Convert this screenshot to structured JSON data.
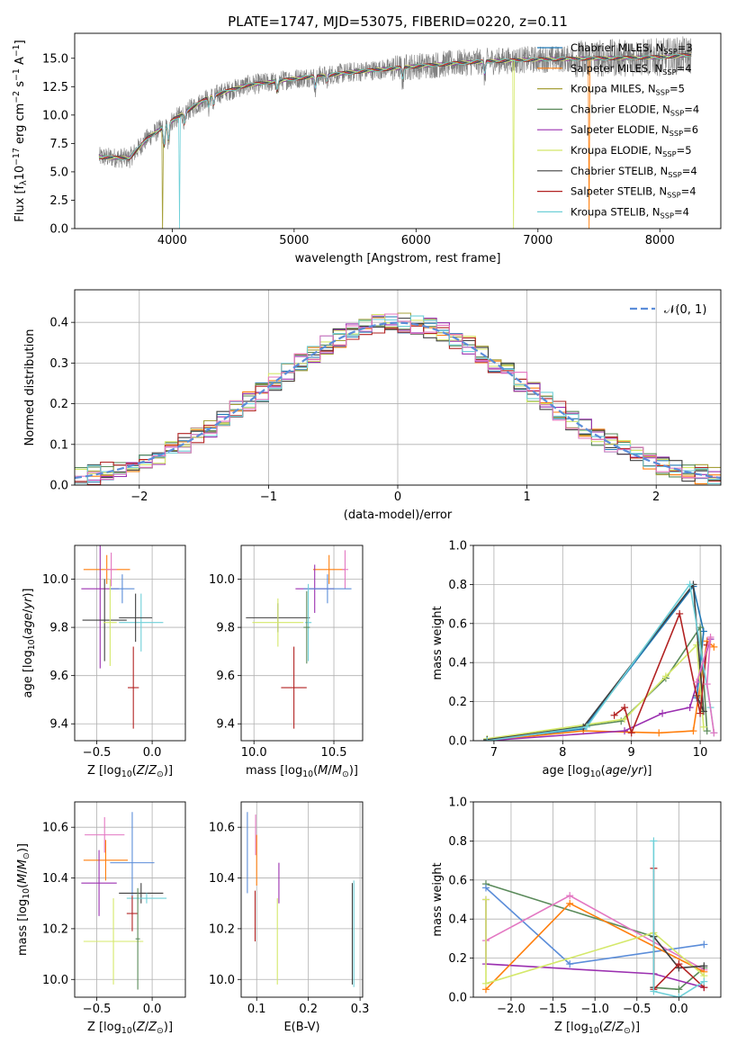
{
  "figure_title": "PLATE=1747, MJD=53075, FIBERID=0220, z=0.11",
  "chart_data": [
    {
      "id": "spectrum",
      "type": "line",
      "title": "PLATE=1747, MJD=53075, FIBERID=0220, z=0.11",
      "xlabel": "wavelength [Angstrom, rest frame]",
      "ylabel": "Flux [f$_\\lambda$10$^{-17}$ erg cm$^{-2}$ s$^{-1}$ A$^{-1}$]",
      "xlim": [
        3200,
        8500
      ],
      "ylim": [
        0,
        17.2
      ],
      "xticks": [
        4000,
        5000,
        6000,
        7000,
        8000
      ],
      "yticks": [
        0.0,
        2.5,
        5.0,
        7.5,
        10.0,
        12.5,
        15.0
      ],
      "ytick_labels": [
        "0.0",
        "2.5",
        "5.0",
        "7.5",
        "10.0",
        "12.5",
        "15.0"
      ],
      "continuum": {
        "x": [
          3400,
          3650,
          3800,
          4000,
          4300,
          4600,
          5000,
          5500,
          6000,
          6500,
          7000,
          7500,
          8000,
          8250
        ],
        "y": [
          6.3,
          6.2,
          8.0,
          9.5,
          11.6,
          12.6,
          13.2,
          13.8,
          14.3,
          14.7,
          14.9,
          15.0,
          15.1,
          15.3
        ]
      },
      "observed": {
        "name": "data",
        "color": "#7f7f7f"
      },
      "legend_position": "top-right",
      "series": [
        {
          "label": "Chabrier MILES, N$_{SSP}$=3",
          "color": "#1f77b4",
          "dip": null
        },
        {
          "label": "Salpeter MILES, N$_{SSP}$=4",
          "color": "#ff7f0e",
          "dip": 7420
        },
        {
          "label": "Kroupa MILES, N$_{SSP}$=5",
          "color": "#a6a03a",
          "dip": 3920
        },
        {
          "label": "Chabrier ELODIE, N$_{SSP}$=4",
          "color": "#5a8a5a",
          "dip": null
        },
        {
          "label": "Salpeter ELODIE, N$_{SSP}$=6",
          "color": "#9b30b0",
          "dip": null
        },
        {
          "label": "Kroupa ELODIE, N$_{SSP}$=5",
          "color": "#d4e86a",
          "dip": 6800
        },
        {
          "label": "Chabrier STELIB, N$_{SSP}$=4",
          "color": "#404040",
          "dip": null
        },
        {
          "label": "Salpeter STELIB, N$_{SSP}$=4",
          "color": "#b22222",
          "dip": null
        },
        {
          "label": "Kroupa STELIB, N$_{SSP}$=4",
          "color": "#6fd0d8",
          "dip": 4060
        }
      ]
    },
    {
      "id": "residuals",
      "type": "line",
      "xlabel": "(data-model)/error",
      "ylabel": "Normed distribution",
      "xlim": [
        -2.5,
        2.5
      ],
      "ylim": [
        0,
        0.48
      ],
      "xticks": [
        -2,
        -1,
        0,
        1,
        2
      ],
      "xtick_labels": [
        "−2",
        "−1",
        "0",
        "1",
        "2"
      ],
      "yticks": [
        0.0,
        0.1,
        0.2,
        0.3,
        0.4
      ],
      "ytick_labels": [
        "0.0",
        "0.1",
        "0.2",
        "0.3",
        "0.4"
      ],
      "bin_width": 0.1,
      "reference": {
        "label": "𝒩(0, 1)",
        "color": "#5b8dd9",
        "mean": 0,
        "sigma": 1
      },
      "histogram_colors": [
        "#1f77b4",
        "#ff7f0e",
        "#a6a03a",
        "#5a8a5a",
        "#9b30b0",
        "#d4e86a",
        "#404040",
        "#b22222",
        "#6fd0d8",
        "#e377c2"
      ],
      "grid": true
    },
    {
      "id": "age_vs_Z",
      "type": "scatter",
      "xlabel": "Z [log$_{10}$($Z/Z_\\odot$)]",
      "ylabel": "age  [log$_{10}$($age/yr$)]",
      "xlim": [
        -0.7,
        0.3
      ],
      "ylim": [
        9.33,
        10.14
      ],
      "xticks": [
        -0.5,
        0.0
      ],
      "xtick_labels": [
        "−0.5",
        "0.0"
      ],
      "yticks": [
        9.4,
        9.6,
        9.8,
        10.0
      ],
      "ytick_labels": [
        "9.4",
        "9.6",
        "9.8",
        "10.0"
      ],
      "grid": true,
      "points": [
        {
          "x": -0.41,
          "y": 10.04,
          "xerr": 0.21,
          "yerr": 0.06,
          "color": "#ff7f0e"
        },
        {
          "x": -0.37,
          "y": 10.04,
          "xerr": 0.05,
          "yerr": 0.07,
          "color": "#e377c2"
        },
        {
          "x": -0.47,
          "y": 9.96,
          "xerr": 0.17,
          "yerr": 0.33,
          "color": "#9b30b0"
        },
        {
          "x": -0.27,
          "y": 9.96,
          "xerr": 0.11,
          "yerr": 0.06,
          "color": "#5b8dd9"
        },
        {
          "x": -0.43,
          "y": 9.83,
          "xerr": 0.2,
          "yerr": 0.17,
          "color": "#404040"
        },
        {
          "x": -0.38,
          "y": 9.82,
          "xerr": 0.06,
          "yerr": 0.18,
          "color": "#d4e86a"
        },
        {
          "x": -0.1,
          "y": 9.82,
          "xerr": 0.2,
          "yerr": 0.12,
          "color": "#6fd0d8"
        },
        {
          "x": -0.15,
          "y": 9.84,
          "xerr": 0.15,
          "yerr": 0.1,
          "color": "#404040"
        },
        {
          "x": -0.17,
          "y": 9.55,
          "xerr": 0.05,
          "yerr": 0.17,
          "color": "#b22222"
        }
      ]
    },
    {
      "id": "age_vs_mass",
      "type": "scatter",
      "xlabel": "mass [log$_{10}$($M/M_\\odot$)]",
      "ylabel": "",
      "xlim": [
        9.92,
        10.68
      ],
      "ylim": [
        9.33,
        10.14
      ],
      "xticks": [
        10.0,
        10.5
      ],
      "xtick_labels": [
        "10.0",
        "10.5"
      ],
      "yticks": [
        9.4,
        9.6,
        9.8,
        10.0
      ],
      "ytick_labels": [
        "9.4",
        "9.6",
        "9.8",
        "10.0"
      ],
      "grid": true,
      "points": [
        {
          "x": 10.47,
          "y": 10.04,
          "xerr": 0.1,
          "yerr": 0.06,
          "color": "#ff7f0e"
        },
        {
          "x": 10.57,
          "y": 10.04,
          "xerr": 0.02,
          "yerr": 0.08,
          "color": "#e377c2"
        },
        {
          "x": 10.38,
          "y": 9.96,
          "xerr": 0.12,
          "yerr": 0.1,
          "color": "#9b30b0"
        },
        {
          "x": 10.46,
          "y": 9.96,
          "xerr": 0.15,
          "yerr": 0.06,
          "color": "#5b8dd9"
        },
        {
          "x": 10.15,
          "y": 9.84,
          "xerr": 0.2,
          "yerr": 0.06,
          "color": "#404040"
        },
        {
          "x": 10.15,
          "y": 9.82,
          "xerr": 0.16,
          "yerr": 0.1,
          "color": "#d4e86a"
        },
        {
          "x": 10.34,
          "y": 9.82,
          "xerr": 0.02,
          "yerr": 0.16,
          "color": "#6fd0d8"
        },
        {
          "x": 10.33,
          "y": 9.8,
          "xerr": 0.02,
          "yerr": 0.15,
          "color": "#5a8a5a"
        },
        {
          "x": 10.25,
          "y": 9.55,
          "xerr": 0.08,
          "yerr": 0.17,
          "color": "#b22222"
        }
      ]
    },
    {
      "id": "weight_vs_age",
      "type": "line",
      "xlabel": "age  [log$_{10}$($age/yr$)]",
      "ylabel": "mass weight",
      "xlim": [
        6.7,
        10.3
      ],
      "ylim": [
        0,
        1.0
      ],
      "xticks": [
        7,
        8,
        9,
        10
      ],
      "yticks": [
        0.0,
        0.2,
        0.4,
        0.6,
        0.8,
        1.0
      ],
      "ytick_labels": [
        "0.0",
        "0.2",
        "0.4",
        "0.6",
        "0.8",
        "1.0"
      ],
      "grid": true,
      "series": [
        {
          "color": "#1f77b4",
          "x": [
            6.9,
            8.3,
            9.9,
            10.05,
            9.95
          ],
          "y": [
            0.005,
            0.06,
            0.79,
            0.56,
            0.22
          ]
        },
        {
          "color": "#ff7f0e",
          "x": [
            6.9,
            8.3,
            9.4,
            9.9,
            10.1,
            10.2
          ],
          "y": [
            0.0,
            0.05,
            0.04,
            0.05,
            0.51,
            0.48
          ]
        },
        {
          "color": "#5a8a5a",
          "x": [
            6.9,
            8.85,
            9.5,
            10.0,
            10.1
          ],
          "y": [
            0.005,
            0.1,
            0.32,
            0.58,
            0.05
          ]
        },
        {
          "color": "#9b30b0",
          "x": [
            6.9,
            8.9,
            9.45,
            9.85,
            10.15
          ],
          "y": [
            0.0,
            0.05,
            0.14,
            0.17,
            0.52
          ]
        },
        {
          "color": "#d4e86a",
          "x": [
            6.9,
            8.9,
            9.5,
            9.95,
            10.05
          ],
          "y": [
            0.01,
            0.11,
            0.33,
            0.49,
            0.07
          ]
        },
        {
          "color": "#404040",
          "x": [
            6.9,
            8.3,
            9.9,
            10.05,
            9.95
          ],
          "y": [
            0.005,
            0.07,
            0.8,
            0.15,
            0.23
          ]
        },
        {
          "color": "#b22222",
          "x": [
            8.75,
            8.9,
            9.0,
            9.7,
            10.0,
            10.1
          ],
          "y": [
            0.13,
            0.17,
            0.04,
            0.65,
            0.14,
            0.49
          ]
        },
        {
          "color": "#6fd0d8",
          "x": [
            6.9,
            8.35,
            9.85,
            10.15,
            10.2
          ],
          "y": [
            0.0,
            0.07,
            0.8,
            0.17,
            0.04
          ]
        },
        {
          "color": "#e377c2",
          "x": [
            9.95,
            10.15,
            10.1,
            10.2
          ],
          "y": [
            0.3,
            0.53,
            0.29,
            0.04
          ]
        }
      ]
    },
    {
      "id": "mass_vs_Z",
      "type": "scatter",
      "xlabel": "Z [log$_{10}$($Z/Z_\\odot$)]",
      "ylabel": "mass [log$_{10}$($M/M_\\odot$)]",
      "xlim": [
        -0.7,
        0.3
      ],
      "ylim": [
        9.93,
        10.7
      ],
      "xticks": [
        -0.5,
        0.0
      ],
      "xtick_labels": [
        "−0.5",
        "0.0"
      ],
      "yticks": [
        10.0,
        10.2,
        10.4,
        10.6
      ],
      "ytick_labels": [
        "10.0",
        "10.2",
        "10.4",
        "10.6"
      ],
      "grid": true,
      "points": [
        {
          "x": -0.43,
          "y": 10.57,
          "xerr": 0.18,
          "yerr": 0.07,
          "color": "#e377c2"
        },
        {
          "x": -0.42,
          "y": 10.47,
          "xerr": 0.2,
          "yerr": 0.08,
          "color": "#ff7f0e"
        },
        {
          "x": -0.18,
          "y": 10.46,
          "xerr": 0.2,
          "yerr": 0.2,
          "color": "#5b8dd9"
        },
        {
          "x": -0.48,
          "y": 10.38,
          "xerr": 0.16,
          "yerr": 0.13,
          "color": "#9b30b0"
        },
        {
          "x": -0.1,
          "y": 10.34,
          "xerr": 0.2,
          "yerr": 0.04,
          "color": "#404040"
        },
        {
          "x": -0.05,
          "y": 10.32,
          "xerr": 0.18,
          "yerr": 0.02,
          "color": "#6fd0d8"
        },
        {
          "x": -0.18,
          "y": 10.26,
          "xerr": 0.05,
          "yerr": 0.07,
          "color": "#b22222"
        },
        {
          "x": -0.35,
          "y": 10.15,
          "xerr": 0.27,
          "yerr": 0.17,
          "color": "#d4e86a"
        },
        {
          "x": -0.13,
          "y": 10.16,
          "xerr": 0.02,
          "yerr": 0.2,
          "color": "#5a8a5a"
        }
      ]
    },
    {
      "id": "mass_vs_ebv",
      "type": "scatter",
      "xlabel": "E(B-V)",
      "ylabel": "",
      "xlim": [
        0.07,
        0.305
      ],
      "ylim": [
        9.93,
        10.7
      ],
      "xticks": [
        0.1,
        0.2,
        0.3
      ],
      "xtick_labels": [
        "0.1",
        "0.2",
        "0.3"
      ],
      "yticks": [
        10.0,
        10.2,
        10.4,
        10.6
      ],
      "ytick_labels": [
        "10.0",
        "10.2",
        "10.4",
        "10.6"
      ],
      "grid": true,
      "points": [
        {
          "x": 0.082,
          "y": 10.5,
          "yerr": 0.16,
          "color": "#5b8dd9"
        },
        {
          "x": 0.098,
          "y": 10.57,
          "yerr": 0.08,
          "color": "#e377c2"
        },
        {
          "x": 0.1,
          "y": 10.47,
          "yerr": 0.1,
          "color": "#ff7f0e"
        },
        {
          "x": 0.097,
          "y": 10.25,
          "yerr": 0.1,
          "color": "#b22222"
        },
        {
          "x": 0.143,
          "y": 10.38,
          "yerr": 0.08,
          "color": "#9b30b0"
        },
        {
          "x": 0.14,
          "y": 10.15,
          "yerr": 0.17,
          "color": "#d4e86a"
        },
        {
          "x": 0.285,
          "y": 10.18,
          "yerr": 0.2,
          "color": "#404040"
        },
        {
          "x": 0.288,
          "y": 10.18,
          "yerr": 0.21,
          "color": "#6fd0d8"
        }
      ]
    },
    {
      "id": "weight_vs_Z",
      "type": "line",
      "xlabel": "Z [log$_{10}$($Z/Z_\\odot$)]",
      "ylabel": "mass weight",
      "xlim": [
        -2.45,
        0.5
      ],
      "ylim": [
        0,
        1.0
      ],
      "xticks": [
        -2.0,
        -1.5,
        -1.0,
        -0.5,
        0.0
      ],
      "xtick_labels": [
        "−2.0",
        "−1.5",
        "−1.0",
        "−0.5",
        "0.0"
      ],
      "yticks": [
        0.0,
        0.2,
        0.4,
        0.6,
        0.8,
        1.0
      ],
      "ytick_labels": [
        "0.0",
        "0.2",
        "0.4",
        "0.6",
        "0.8",
        "1.0"
      ],
      "grid": true,
      "series": [
        {
          "color": "#5a8a5a",
          "x": [
            -2.3,
            -0.3,
            -0.3,
            0.0,
            0.3
          ],
          "y": [
            0.58,
            0.31,
            0.05,
            0.04,
            0.15
          ]
        },
        {
          "color": "#5b8dd9",
          "x": [
            -2.3,
            -1.3,
            0.3
          ],
          "y": [
            0.56,
            0.17,
            0.27
          ]
        },
        {
          "color": "#9b30b0",
          "x": [
            -2.3,
            -2.3,
            -0.3,
            0.3
          ],
          "y": [
            0.5,
            0.17,
            0.12,
            0.05
          ]
        },
        {
          "color": "#e377c2",
          "x": [
            -2.3,
            -1.3,
            0.3
          ],
          "y": [
            0.29,
            0.52,
            0.14
          ]
        },
        {
          "color": "#ff7f0e",
          "x": [
            -2.3,
            -1.3,
            0.3
          ],
          "y": [
            0.04,
            0.48,
            0.13
          ]
        },
        {
          "color": "#d4e86a",
          "x": [
            -2.3,
            -2.3,
            -0.3,
            0.3
          ],
          "y": [
            0.5,
            0.07,
            0.33,
            0.11
          ]
        },
        {
          "color": "#404040",
          "x": [
            -0.3,
            -0.3,
            0.0,
            0.3
          ],
          "y": [
            0.05,
            0.31,
            0.15,
            0.16
          ]
        },
        {
          "color": "#b22222",
          "x": [
            -0.3,
            -0.3,
            0.0,
            0.3
          ],
          "y": [
            0.66,
            0.04,
            0.17,
            0.05
          ]
        },
        {
          "color": "#6fd0d8",
          "x": [
            -0.3,
            -0.3,
            0.0,
            0.3
          ],
          "y": [
            0.8,
            0.03,
            0.0,
            0.08
          ]
        }
      ]
    }
  ]
}
